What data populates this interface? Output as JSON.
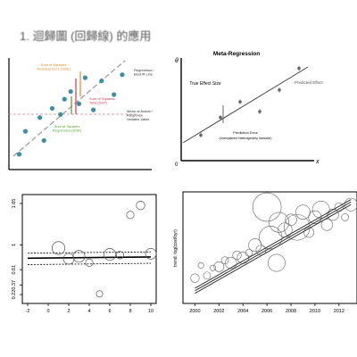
{
  "header": {
    "title": "1. 迴歸圖 (回歸線) 的應用"
  },
  "panel1": {
    "labels": {
      "sse": "Sum of Squares\nResidual Error (SSE)",
      "regline": "Regression /\nBest-fit Line",
      "sst": "Sum of Squares\nTotal (SST)",
      "ssr": "Sum of Squares\nRegression (SSR)",
      "mean": "Mean of Actual /\nResponse\nVariable Value"
    },
    "colors": {
      "points": "#3a8fa5",
      "reg_line": "#888888",
      "mean_line": "#d9a0a0",
      "sse": "#e08a2b",
      "sst": "#d6334c",
      "ssr": "#5aa02c"
    }
  },
  "panel2": {
    "title": "Meta-Regression",
    "y_symbol": "θ",
    "x_symbol": "x",
    "origin": "0",
    "labels": {
      "true_effect": "True Effect Size",
      "predicted": "Predicted Effect",
      "pred_error": "Prediction Error",
      "pred_error_sub": "(Unexplained Heterogeneity Variance)"
    }
  },
  "chart_data": [
    {
      "type": "scatter",
      "title": "",
      "x": [
        1.0,
        1.3,
        2.0,
        2.2,
        2.6,
        3.0,
        3.2,
        3.5,
        3.9,
        4.2,
        4.6,
        5.0,
        5.6,
        6.0
      ],
      "y": [
        2.0,
        3.5,
        4.4,
        2.9,
        5.0,
        4.6,
        5.6,
        6.1,
        5.3,
        7.0,
        4.9,
        6.8,
        5.9,
        7.2
      ],
      "regression_line": true,
      "mean_line": true
    },
    {
      "type": "scatter",
      "title": "Meta-Regression",
      "x": [
        1,
        2,
        3,
        4,
        5,
        6
      ],
      "y": [
        1.3,
        2.2,
        3.0,
        2.5,
        3.6,
        4.7
      ],
      "regression_line": true
    },
    {
      "type": "scatter",
      "x": [
        1,
        2,
        3,
        4,
        6,
        7,
        8,
        9,
        10,
        5
      ],
      "y": [
        0.95,
        0.78,
        0.82,
        0.72,
        0.85,
        0.84,
        1.47,
        1.62,
        0.86,
        0.23
      ],
      "sizes": [
        12,
        10,
        11,
        7,
        11,
        7,
        7,
        8,
        10,
        6
      ],
      "fit_line": {
        "x": [
          -2,
          10
        ],
        "y": [
          0.79,
          0.81
        ]
      },
      "ci_upper": {
        "x": [
          -2,
          10
        ],
        "y": [
          0.87,
          0.89
        ]
      },
      "ci_lower": {
        "x": [
          -2,
          10
        ],
        "y": [
          0.69,
          0.71
        ]
      },
      "xlim": [
        -2,
        10
      ],
      "ylim": [
        0.22,
        1.65
      ],
      "xticks": [
        "-2",
        "0",
        "2",
        "4",
        "6",
        "8",
        "10"
      ],
      "yticks": [
        "0.22",
        "0.37",
        "0.61",
        "1",
        "1.65"
      ]
    },
    {
      "type": "scatter",
      "ylabel": "trend: log(cost/byr)",
      "x": [
        2000,
        2000.5,
        2001,
        2001.5,
        2002,
        2002.5,
        2003,
        2003.5,
        2004,
        2004.5,
        2005,
        2005.5,
        2006,
        2006.3,
        2006.8,
        2007,
        2007.5,
        2008,
        2008.5,
        2009,
        2009.5,
        2010,
        2010.5,
        2011,
        2011.5,
        2012,
        2012.5,
        2013
      ],
      "y": [
        -0.4,
        0.1,
        -0.3,
        0.0,
        0.05,
        0.3,
        0.2,
        0.5,
        0.4,
        0.6,
        0.9,
        0.7,
        2.4,
        1.2,
        0.2,
        1.8,
        1.5,
        1.9,
        1.6,
        2.2,
        1.4,
        2.0,
        2.3,
        1.7,
        2.1,
        2.4,
        2.0,
        2.5
      ],
      "sizes": [
        6,
        4,
        5,
        4,
        7,
        5,
        8,
        6,
        8,
        5,
        9,
        7,
        20,
        16,
        12,
        14,
        10,
        8,
        18,
        10,
        7,
        9,
        12,
        8,
        8,
        6,
        5,
        9
      ],
      "fit_lines": [
        {
          "x": [
            2000,
            2013
          ],
          "y": [
            -0.9,
            2.6
          ]
        },
        {
          "x": [
            2000,
            2013
          ],
          "y": [
            -1.0,
            2.5
          ]
        },
        {
          "x": [
            2000,
            2013
          ],
          "y": [
            -0.8,
            2.7
          ]
        }
      ],
      "xlim": [
        1999,
        2013.5
      ],
      "ylim": [
        -1.4,
        3.0
      ],
      "xticks": [
        "2000",
        "2002",
        "2004",
        "2006",
        "2008",
        "2010",
        "2012"
      ]
    }
  ]
}
